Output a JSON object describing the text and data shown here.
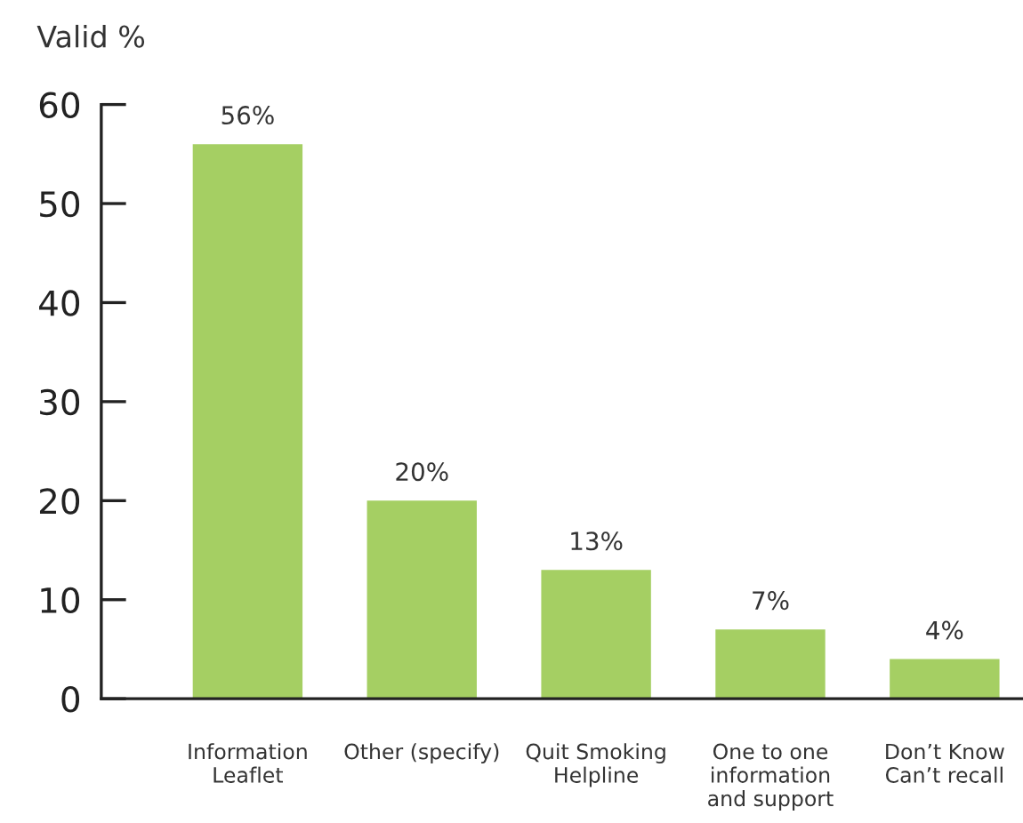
{
  "chart_data": {
    "type": "bar",
    "ylabel": "Valid %",
    "categories": [
      "Information\nLeaflet",
      "Other (specify)",
      "Quit Smoking\nHelpline",
      "One to one\ninformation\nand support",
      "Don’t Know\nCan’t recall"
    ],
    "values": [
      56,
      20,
      13,
      7,
      4
    ],
    "value_labels": [
      "56%",
      "20%",
      "13%",
      "7%",
      "4%"
    ],
    "color": "#a5cf63",
    "ylim": [
      0,
      60
    ],
    "yticks": [
      0,
      10,
      20,
      30,
      40,
      50,
      60
    ]
  }
}
